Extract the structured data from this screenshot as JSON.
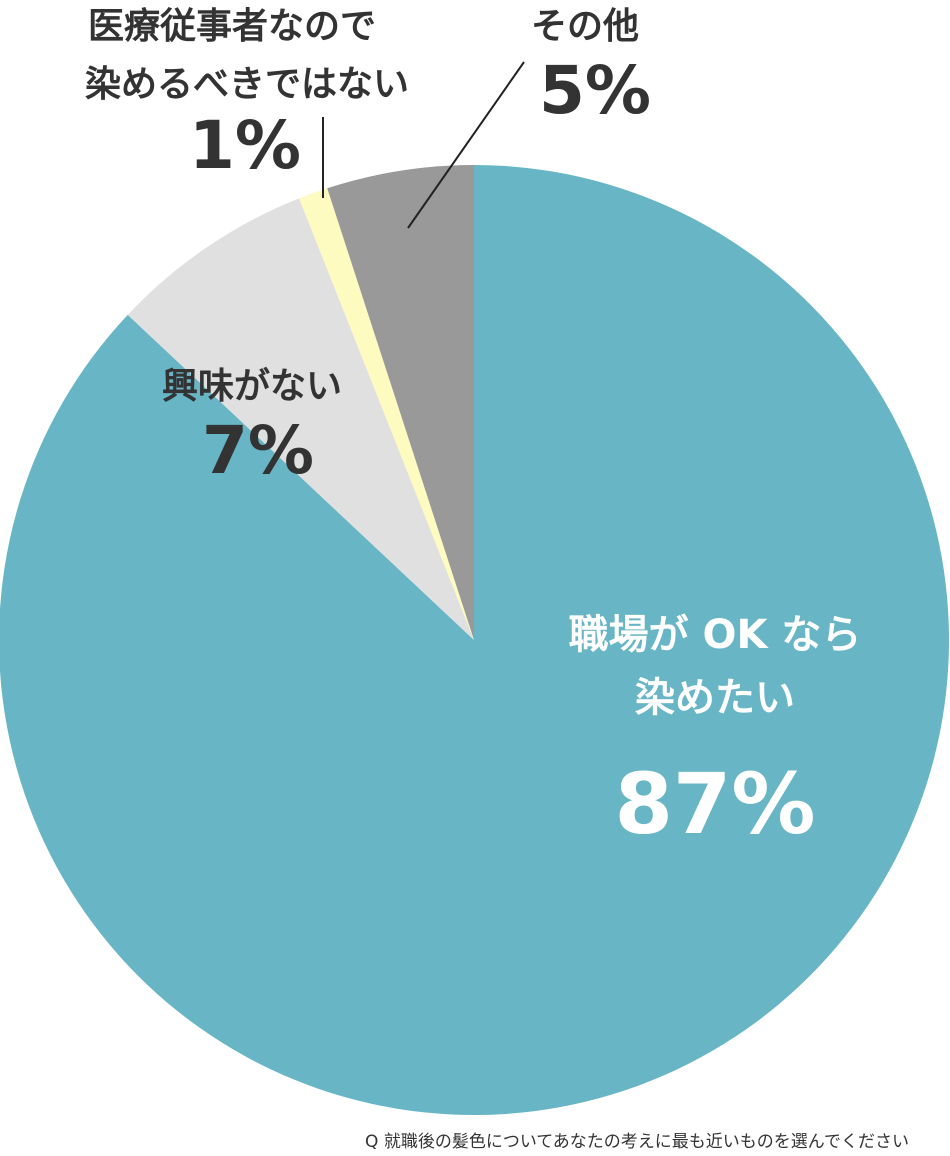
{
  "chart_data": {
    "type": "pie",
    "categories": [
      [
        "職場が OK なら",
        "染めたい"
      ],
      [
        "興味がない"
      ],
      [
        "医療従事者なので",
        "染めるべきではない"
      ],
      [
        "その他"
      ]
    ],
    "values": [
      87,
      7,
      1,
      5
    ],
    "value_labels": [
      "87%",
      "7%",
      "1%",
      "5%"
    ],
    "colors": [
      "#67b5c5",
      "#e0e0e0",
      "#fdfbbf",
      "#999999"
    ],
    "caption": "Q 就職後の髪色についてあなたの考えに最も近いものを選んでください"
  }
}
